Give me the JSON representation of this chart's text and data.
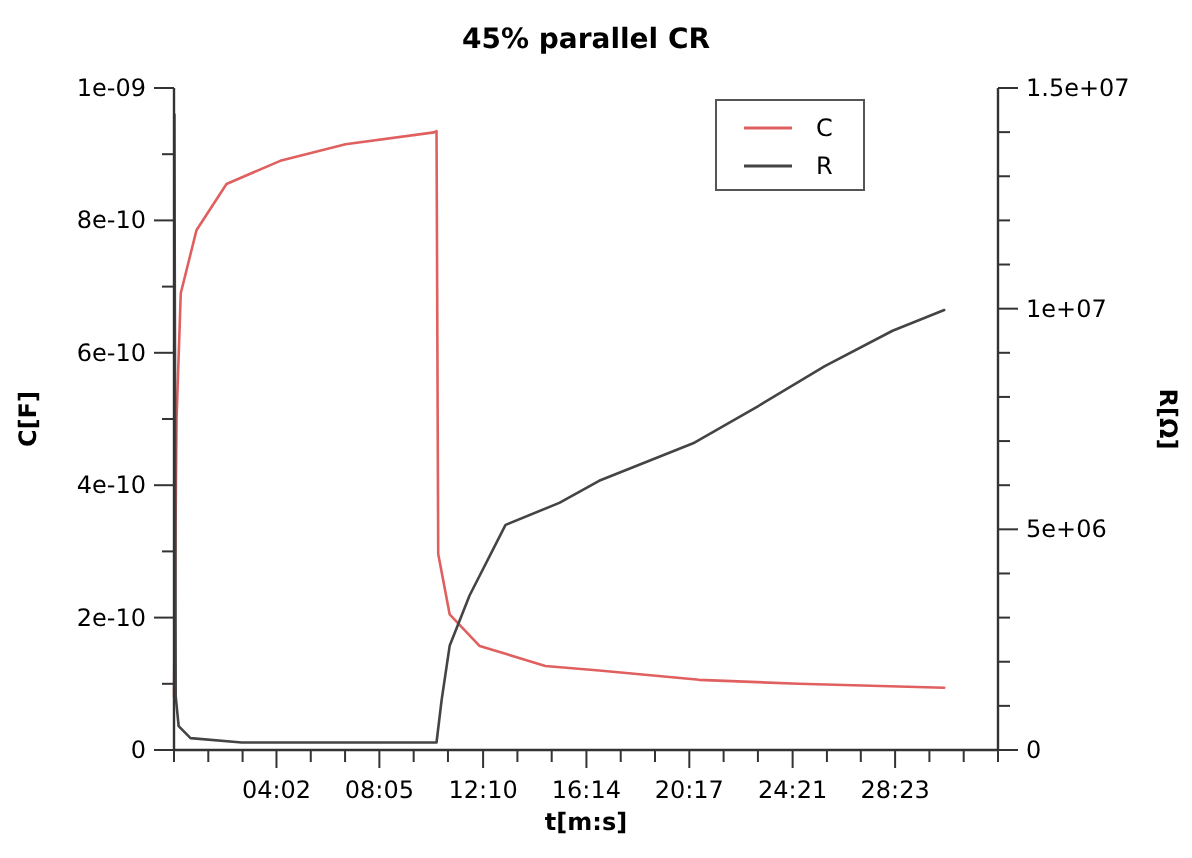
{
  "chart_data": {
    "type": "line",
    "title": "45% parallel CR",
    "xlabel": "t[m:s]",
    "ylabel": "C[F]",
    "y2label": "R[Ω]",
    "xlim": [
      0,
      1946
    ],
    "xticks": [
      {
        "value": 0,
        "label": null
      },
      {
        "value": 81,
        "label": null
      },
      {
        "value": 162,
        "label": null
      },
      {
        "value": 242,
        "label": "04:02"
      },
      {
        "value": 323,
        "label": null
      },
      {
        "value": 404,
        "label": null
      },
      {
        "value": 485,
        "label": "08:05"
      },
      {
        "value": 566,
        "label": null
      },
      {
        "value": 647,
        "label": null
      },
      {
        "value": 730,
        "label": "12:10"
      },
      {
        "value": 811,
        "label": null
      },
      {
        "value": 892,
        "label": null
      },
      {
        "value": 974,
        "label": "16:14"
      },
      {
        "value": 1055,
        "label": null
      },
      {
        "value": 1136,
        "label": null
      },
      {
        "value": 1217,
        "label": "20:17"
      },
      {
        "value": 1298,
        "label": null
      },
      {
        "value": 1379,
        "label": null
      },
      {
        "value": 1461,
        "label": "24:21"
      },
      {
        "value": 1542,
        "label": null
      },
      {
        "value": 1622,
        "label": null
      },
      {
        "value": 1703,
        "label": "28:23"
      },
      {
        "value": 1784,
        "label": null
      },
      {
        "value": 1865,
        "label": null
      },
      {
        "value": 1946,
        "label": null
      }
    ],
    "ylim": [
      0,
      1e-09
    ],
    "yticks": [
      0,
      {
        "value": 1e-10,
        "label": null
      },
      {
        "value": 2e-10,
        "label": "2e-10"
      },
      {
        "value": 3e-10,
        "label": null
      },
      {
        "value": 4e-10,
        "label": "4e-10"
      },
      {
        "value": 5e-10,
        "label": null
      },
      {
        "value": 6e-10,
        "label": "6e-10"
      },
      {
        "value": 7e-10,
        "label": null
      },
      {
        "value": 8e-10,
        "label": "8e-10"
      },
      {
        "value": 9e-10,
        "label": null
      },
      {
        "value": 1e-09,
        "label": "1e-09"
      }
    ],
    "y2lim": [
      0,
      15000000
    ],
    "y2ticks": [
      0,
      {
        "value": 1000000,
        "label": null
      },
      {
        "value": 2000000,
        "label": null
      },
      {
        "value": 3000000,
        "label": null
      },
      {
        "value": 4000000,
        "label": null
      },
      {
        "value": 5000000,
        "label": "5e+06"
      },
      {
        "value": 6000000,
        "label": null
      },
      {
        "value": 7000000,
        "label": null
      },
      {
        "value": 8000000,
        "label": null
      },
      {
        "value": 9000000,
        "label": null
      },
      {
        "value": 10000000,
        "label": "1e+07"
      },
      {
        "value": 11000000,
        "label": null
      },
      {
        "value": 12000000,
        "label": null
      },
      {
        "value": 13000000,
        "label": null
      },
      {
        "value": 14000000,
        "label": null
      },
      {
        "value": 15000000,
        "label": "1.5e+07"
      }
    ],
    "grid": false,
    "legend": "top right",
    "marker": "none",
    "line_style": "solid",
    "series": [
      {
        "name": "C",
        "color": "#e06060",
        "x": [
          0,
          6,
          16,
          53,
          124,
          251,
          405,
          614,
          620,
          624,
          651,
          722,
          877,
          1004,
          1240,
          1475,
          1819
        ],
        "values": [
          8e-11,
          5e-10,
          6.9e-10,
          7.85e-10,
          8.55e-10,
          8.9e-10,
          9.15e-10,
          9.33e-10,
          9.35e-10,
          2.96e-10,
          2.05e-10,
          1.57e-10,
          1.27e-10,
          1.2e-10,
          1.06e-10,
          1e-10,
          9.4e-11
        ]
      },
      {
        "name": "R",
        "color": "#444444",
        "axis": "y2",
        "x": [
          1,
          4,
          11,
          39,
          160,
          620,
          632,
          651,
          698,
          783,
          910,
          1004,
          1226,
          1381,
          1537,
          1697,
          1819
        ],
        "values": [
          14400000,
          1220000,
          540000,
          270000,
          170000,
          170000,
          1130000,
          2360000,
          3500000,
          5100000,
          5600000,
          6100000,
          6950000,
          7800000,
          8700000,
          9500000,
          9970000
        ]
      }
    ]
  }
}
